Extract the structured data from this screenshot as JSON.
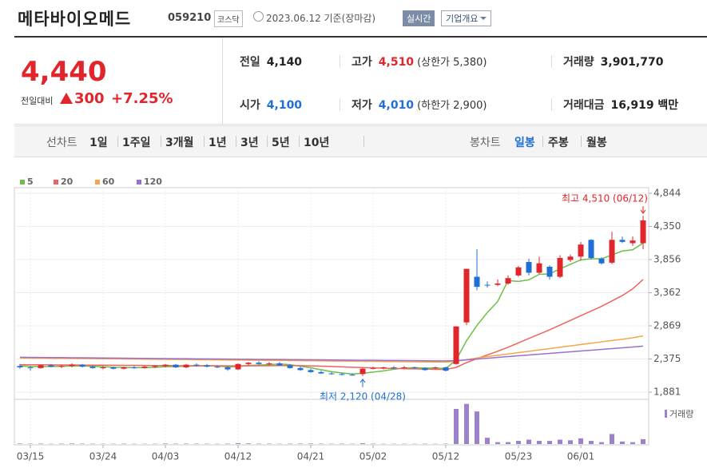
{
  "header": {
    "title": "메타바이오메드",
    "code": "059210",
    "market": "코스닥",
    "date": "2023.06.12 기준(장마감)",
    "buttons": [
      "실시간",
      "기업개요"
    ]
  },
  "price": {
    "current": "4,440",
    "change_label": "전일대비",
    "change": "300",
    "rate": "+7.25%"
  },
  "stats": [
    {
      "label": "전일",
      "value": "4,140"
    },
    {
      "label": "고가",
      "value": "4,510",
      "note": "(상한가 5,380)"
    },
    {
      "label": "거래량",
      "value": "3,901,770"
    },
    {
      "label": "시가",
      "value": "4,100"
    },
    {
      "label": "저가",
      "value": "4,010",
      "note": "(하한가 2,900)"
    },
    {
      "label": "거래대금",
      "value": "16,919 백만"
    }
  ],
  "tabs": {
    "line_label": "선차트",
    "line": [
      "1일",
      "1주일",
      "3개월",
      "1년",
      "3년",
      "5년",
      "10년"
    ],
    "candle_label": "봉차트",
    "candle": [
      "일봉",
      "주봉",
      "월봉"
    ]
  },
  "chart_data": {
    "type": "candlestick",
    "categories": [
      null,
      "03/15",
      null,
      null,
      null,
      null,
      null,
      null,
      "03/24",
      null,
      null,
      null,
      null,
      null,
      "04/03",
      null,
      null,
      null,
      null,
      null,
      null,
      "04/12",
      null,
      null,
      null,
      null,
      null,
      null,
      "04/21",
      null,
      null,
      null,
      null,
      null,
      "05/02",
      null,
      null,
      null,
      null,
      null,
      null,
      "05/12",
      null,
      null,
      null,
      null,
      null,
      null,
      "05/23",
      null,
      null,
      null,
      null,
      null,
      "06/01",
      null,
      null,
      null,
      null,
      null,
      null
    ],
    "open": [
      2270,
      2250,
      2240,
      2280,
      2260,
      2270,
      2290,
      2260,
      2240,
      2250,
      2230,
      2250,
      2240,
      2260,
      2270,
      2290,
      2250,
      2290,
      2280,
      2260,
      2250,
      2220,
      2300,
      2320,
      2300,
      2310,
      2280,
      2240,
      2210,
      2180,
      2160,
      2150,
      2140,
      2150,
      2230,
      2240,
      2250,
      2240,
      2250,
      2240,
      2240,
      2250,
      2300,
      2920,
      3600,
      3480,
      3480,
      3500,
      3620,
      3820,
      3660,
      3750,
      3600,
      3850,
      3900,
      4150,
      3870,
      3810,
      4150,
      4100,
      4100
    ],
    "high": [
      2300,
      2270,
      2290,
      2300,
      2290,
      2310,
      2300,
      2280,
      2270,
      2260,
      2260,
      2270,
      2270,
      2280,
      2300,
      2300,
      2300,
      2310,
      2300,
      2280,
      2270,
      2310,
      2330,
      2340,
      2330,
      2330,
      2300,
      2260,
      2230,
      2200,
      2180,
      2170,
      2160,
      2240,
      2260,
      2260,
      2270,
      2270,
      2260,
      2250,
      2260,
      2260,
      2860,
      3718,
      4010,
      3530,
      3560,
      3620,
      3760,
      3870,
      3900,
      3770,
      3920,
      3930,
      4120,
      4160,
      3890,
      4270,
      4200,
      4200,
      4510
    ],
    "low": [
      2230,
      2200,
      2230,
      2250,
      2240,
      2250,
      2250,
      2230,
      2220,
      2220,
      2220,
      2230,
      2230,
      2240,
      2250,
      2240,
      2240,
      2260,
      2250,
      2240,
      2200,
      2210,
      2280,
      2290,
      2280,
      2270,
      2230,
      2200,
      2170,
      2150,
      2140,
      2130,
      2125,
      2120,
      2220,
      2220,
      2230,
      2230,
      2230,
      2200,
      2220,
      2190,
      2290,
      2880,
      3400,
      3440,
      3460,
      3480,
      3600,
      3620,
      3640,
      3560,
      3580,
      3820,
      3840,
      3860,
      3780,
      3790,
      4100,
      4060,
      4010
    ],
    "close": [
      2250,
      2240,
      2280,
      2260,
      2270,
      2290,
      2260,
      2240,
      2250,
      2230,
      2250,
      2240,
      2260,
      2270,
      2290,
      2250,
      2290,
      2280,
      2260,
      2250,
      2220,
      2300,
      2320,
      2300,
      2310,
      2280,
      2240,
      2210,
      2180,
      2160,
      2150,
      2140,
      2130,
      2230,
      2240,
      2250,
      2240,
      2250,
      2240,
      2210,
      2250,
      2200,
      2860,
      3718,
      3450,
      3470,
      3500,
      3580,
      3740,
      3660,
      3800,
      3600,
      3880,
      3900,
      4080,
      3880,
      3800,
      4150,
      4120,
      4140,
      4440
    ],
    "up_color": "#e0252b",
    "down_color": "#1f6fd6",
    "series": [
      {
        "name": "5",
        "color": "#6cc04a",
        "values": [
          2270,
          2265,
          2262,
          2264,
          2266,
          2270,
          2272,
          2265,
          2260,
          2252,
          2250,
          2245,
          2247,
          2250,
          2260,
          2262,
          2266,
          2274,
          2276,
          2270,
          2258,
          2262,
          2278,
          2284,
          2290,
          2302,
          2290,
          2268,
          2244,
          2214,
          2186,
          2166,
          2152,
          2162,
          2180,
          2198,
          2222,
          2242,
          2245,
          2240,
          2240,
          2234,
          2360,
          2648,
          2874,
          3066,
          3232,
          3543,
          3530,
          3554,
          3636,
          3644,
          3718,
          3786,
          3852,
          3868,
          3868,
          3926,
          3984,
          4002,
          4102
        ]
      },
      {
        "name": "20",
        "color": "#f0625d",
        "values": [
          2290,
          2289,
          2288,
          2287,
          2286,
          2285,
          2284,
          2283,
          2282,
          2281,
          2280,
          2279,
          2278,
          2277,
          2276,
          2275,
          2274,
          2274,
          2273,
          2273,
          2272,
          2272,
          2273,
          2274,
          2275,
          2276,
          2276,
          2275,
          2272,
          2268,
          2263,
          2258,
          2252,
          2247,
          2242,
          2238,
          2234,
          2230,
          2227,
          2224,
          2222,
          2218,
          2250,
          2320,
          2380,
          2435,
          2490,
          2550,
          2615,
          2680,
          2745,
          2810,
          2880,
          2950,
          3020,
          3090,
          3160,
          3240,
          3320,
          3420,
          3560
        ]
      },
      {
        "name": "60",
        "color": "#f7a54a",
        "values": [
          2390,
          2388,
          2387,
          2385,
          2384,
          2382,
          2381,
          2379,
          2378,
          2376,
          2375,
          2373,
          2372,
          2370,
          2369,
          2367,
          2366,
          2364,
          2363,
          2361,
          2360,
          2358,
          2357,
          2355,
          2354,
          2352,
          2351,
          2349,
          2348,
          2346,
          2345,
          2343,
          2342,
          2340,
          2339,
          2337,
          2336,
          2334,
          2333,
          2331,
          2330,
          2329,
          2340,
          2365,
          2390,
          2410,
          2430,
          2450,
          2470,
          2490,
          2510,
          2530,
          2550,
          2570,
          2590,
          2610,
          2630,
          2650,
          2670,
          2690,
          2720
        ]
      },
      {
        "name": "120",
        "color": "#9b6fcf",
        "values": [
          2400,
          2399,
          2397,
          2396,
          2395,
          2393,
          2392,
          2391,
          2389,
          2388,
          2387,
          2385,
          2384,
          2383,
          2381,
          2380,
          2379,
          2377,
          2376,
          2375,
          2373,
          2372,
          2371,
          2369,
          2368,
          2367,
          2365,
          2364,
          2363,
          2361,
          2360,
          2359,
          2357,
          2356,
          2355,
          2353,
          2352,
          2351,
          2349,
          2348,
          2347,
          2346,
          2350,
          2362,
          2374,
          2386,
          2398,
          2410,
          2422,
          2434,
          2446,
          2458,
          2470,
          2482,
          2494,
          2506,
          2518,
          2530,
          2542,
          2554,
          2566
        ]
      }
    ],
    "volume": {
      "name": "거래량",
      "color": "#9c82c8",
      "ylim": [
        0,
        35000000
      ],
      "values": [
        400000,
        300000,
        350000,
        250000,
        300000,
        450000,
        300000,
        250000,
        200000,
        250000,
        300000,
        250000,
        200000,
        250000,
        400000,
        300000,
        350000,
        300000,
        250000,
        250000,
        300000,
        700000,
        500000,
        300000,
        300000,
        250000,
        300000,
        350000,
        400000,
        300000,
        250000,
        300000,
        250000,
        600000,
        300000,
        250000,
        200000,
        250000,
        200000,
        250000,
        200000,
        300000,
        28000000,
        32000000,
        26000000,
        5000000,
        1500000,
        1500000,
        2500000,
        3500000,
        2500000,
        2500000,
        3500000,
        3000000,
        4500000,
        2500000,
        1500000,
        8000000,
        2000000,
        1500000,
        3901770
      ]
    },
    "ylim": [
      1881,
      4844
    ],
    "yticks": [
      {
        "value": 1881,
        "label": "1,881"
      },
      {
        "value": 2375,
        "label": "2,375"
      },
      {
        "value": 2869,
        "label": "2,869"
      },
      {
        "value": 3362,
        "label": "3,362"
      },
      {
        "value": 3856,
        "label": "3,856"
      },
      {
        "value": 4350,
        "label": "4,350"
      },
      {
        "value": 4844,
        "label": "4,844"
      }
    ],
    "grid": true,
    "annotations": [
      {
        "text": "최고 4,510 (06/12)",
        "value": 4510,
        "color": "#e0252b"
      },
      {
        "text": "최저 2,120 (04/28)",
        "value": 2120,
        "color": "#1f6fd6"
      }
    ]
  }
}
